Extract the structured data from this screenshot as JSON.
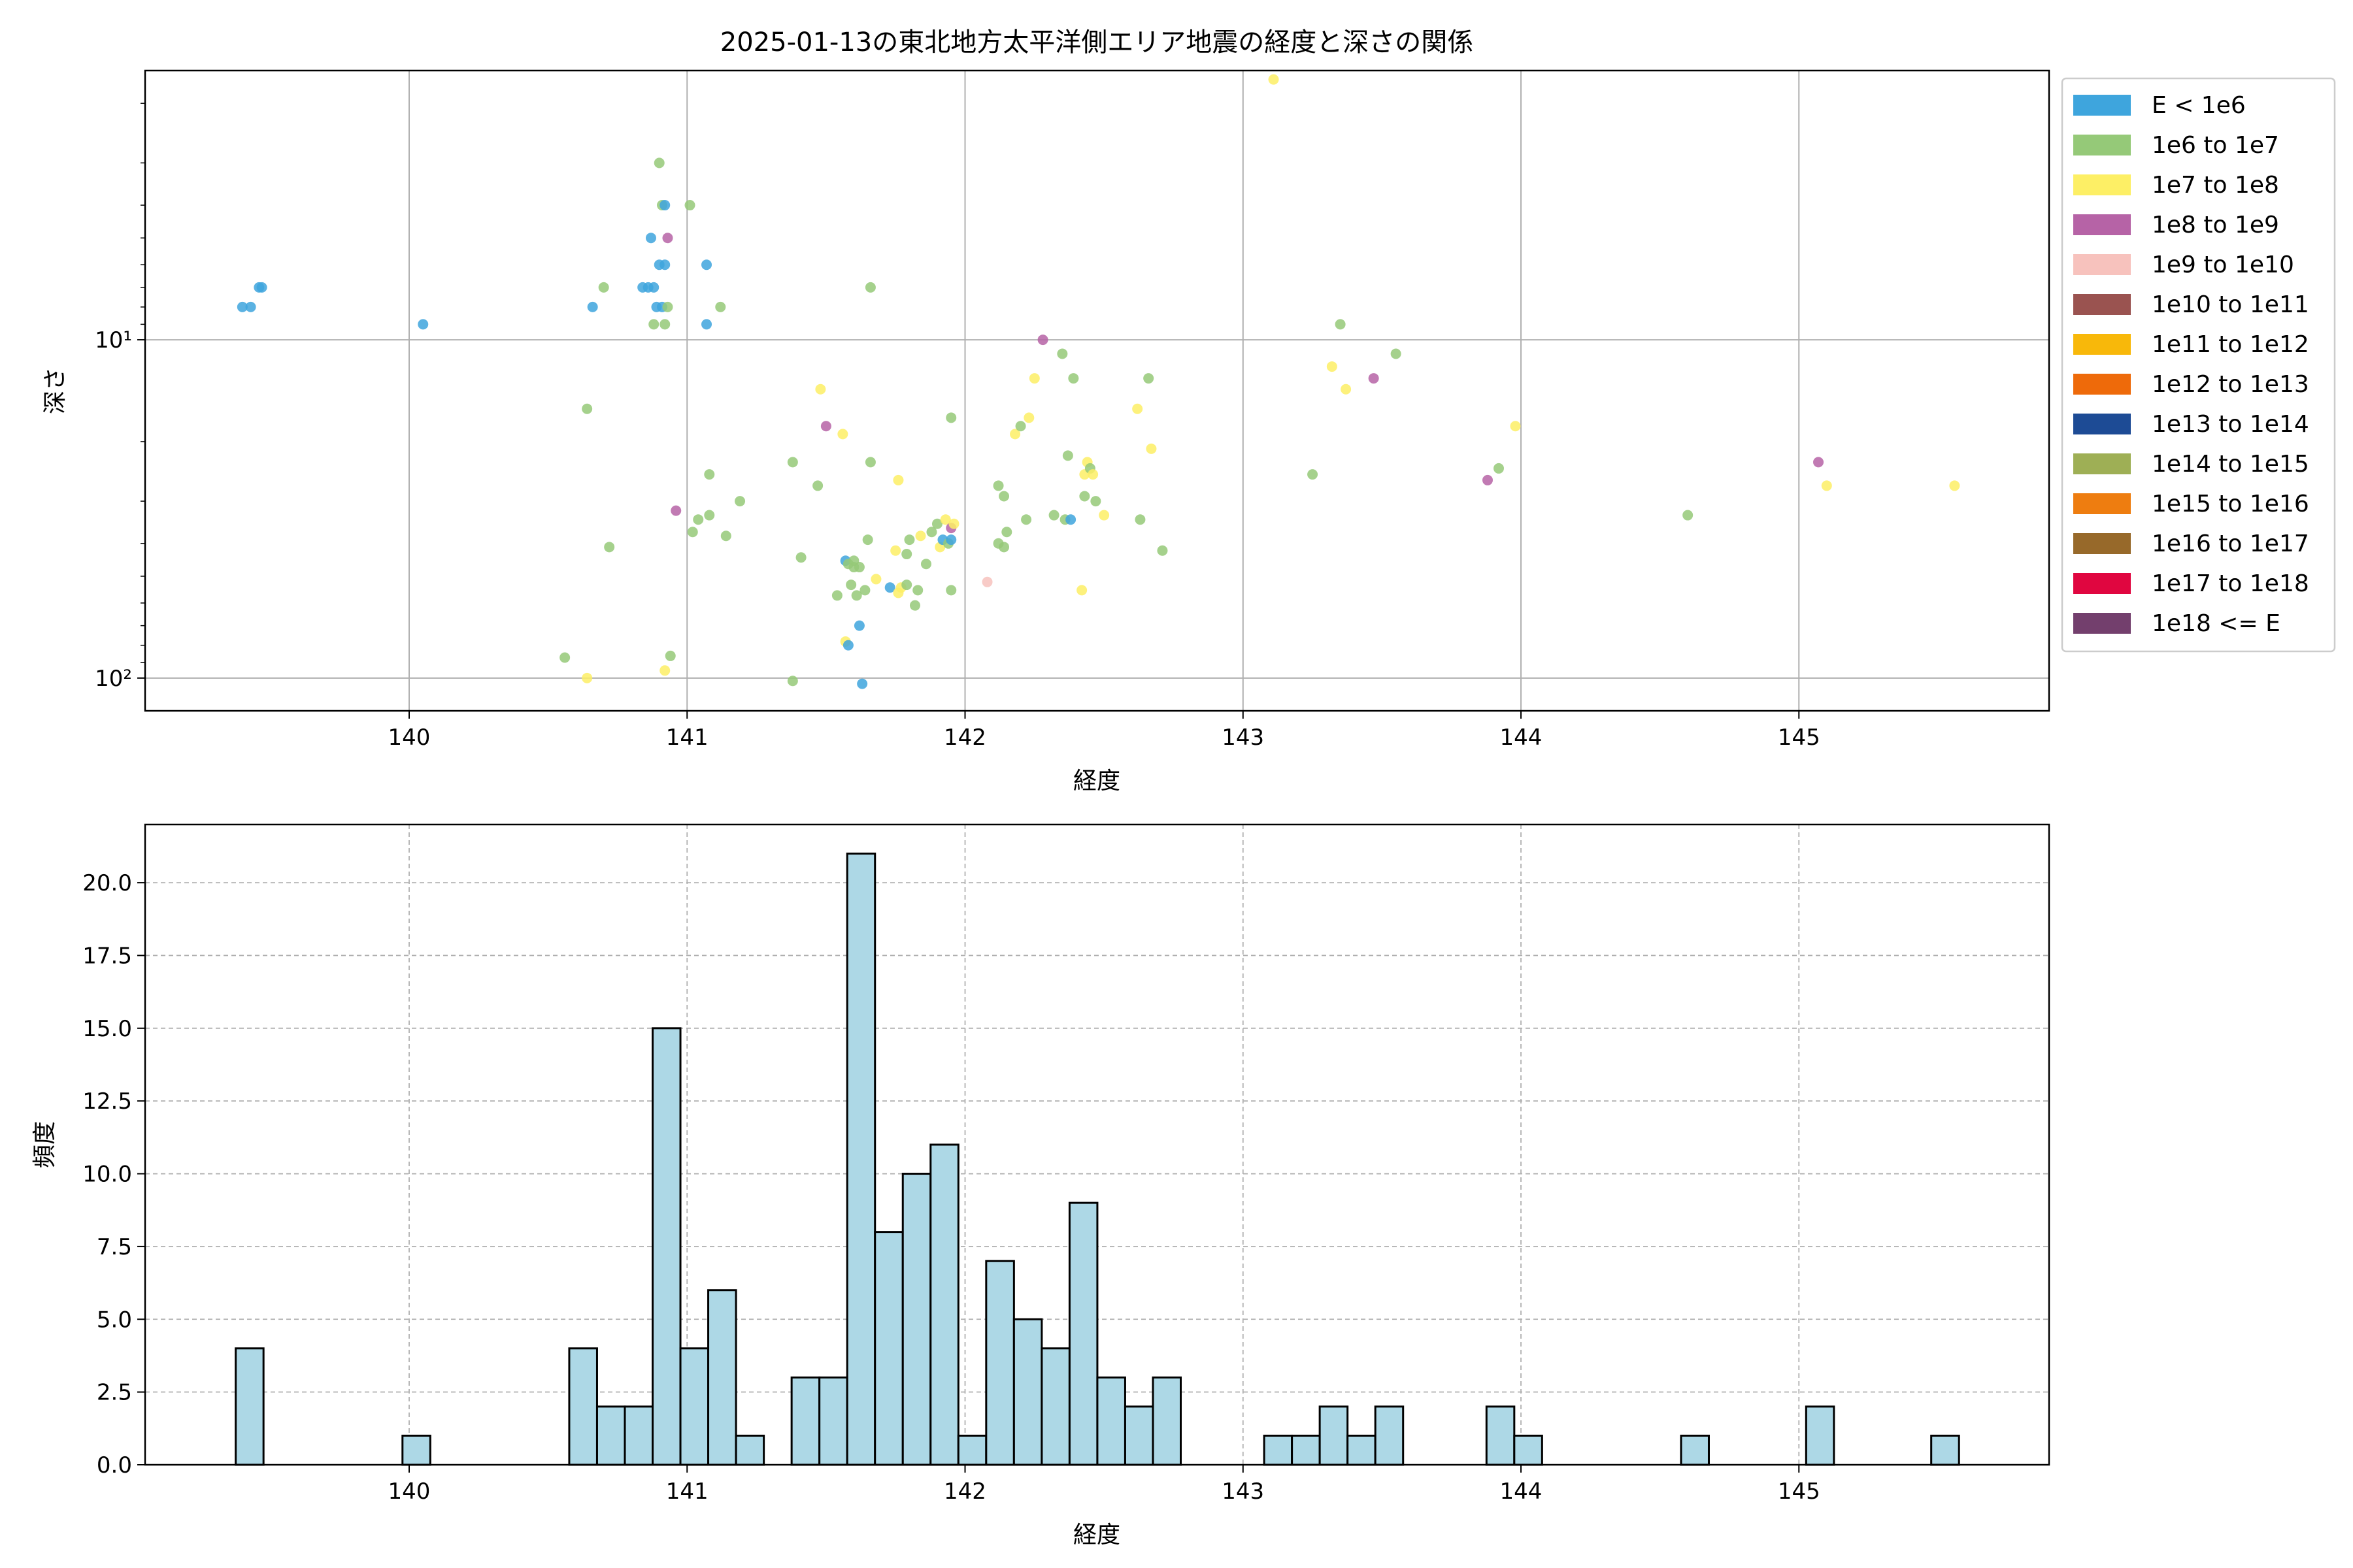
{
  "chart_data": [
    {
      "type": "scatter",
      "title": "2025-01-13の東北地方太平洋側エリア地震の経度と深さの関係",
      "xlabel": "経度",
      "ylabel": "深さ",
      "xlim": [
        139.05,
        145.9
      ],
      "ylim": [
        125,
        1.6
      ],
      "yscale": "log",
      "y_inverted": true,
      "xticks": [
        140,
        141,
        142,
        143,
        144,
        145
      ],
      "xtick_labels": [
        "140",
        "141",
        "142",
        "143",
        "144",
        "145"
      ],
      "yticks": [
        10,
        100
      ],
      "ytick_labels": [
        "10¹",
        "10²"
      ],
      "grid": true,
      "legend": {
        "placement": "outside-right",
        "entries": [
          {
            "label": "E < 1e6",
            "color": "#3ea5dd"
          },
          {
            "label": "1e6 to 1e7",
            "color": "#95c978"
          },
          {
            "label": "1e7 to 1e8",
            "color": "#fdef65"
          },
          {
            "label": "1e8 to 1e9",
            "color": "#b663a6"
          },
          {
            "label": "1e9 to 1e10",
            "color": "#f7c2bd"
          },
          {
            "label": "1e10 to 1e11",
            "color": "#9a5350"
          },
          {
            "label": "1e11 to 1e12",
            "color": "#f8b80a"
          },
          {
            "label": "1e12 to 1e13",
            "color": "#ee6a0a"
          },
          {
            "label": "1e13 to 1e14",
            "color": "#1d4b95"
          },
          {
            "label": "1e14 to 1e15",
            "color": "#9eaf55"
          },
          {
            "label": "1e15 to 1e16",
            "color": "#ee7d10"
          },
          {
            "label": "1e16 to 1e17",
            "color": "#97692a"
          },
          {
            "label": "1e17 to 1e18",
            "color": "#e00640"
          },
          {
            "label": "1e18 <= E",
            "color": "#733f6d"
          }
        ]
      },
      "points": [
        {
          "x": 139.4,
          "y": 8,
          "c": 0
        },
        {
          "x": 139.43,
          "y": 8,
          "c": 0
        },
        {
          "x": 139.46,
          "y": 7,
          "c": 0
        },
        {
          "x": 139.47,
          "y": 7,
          "c": 0
        },
        {
          "x": 140.05,
          "y": 9,
          "c": 0
        },
        {
          "x": 140.56,
          "y": 87,
          "c": 1
        },
        {
          "x": 140.64,
          "y": 100,
          "c": 2
        },
        {
          "x": 140.64,
          "y": 16,
          "c": 1
        },
        {
          "x": 140.66,
          "y": 8,
          "c": 0
        },
        {
          "x": 140.7,
          "y": 7,
          "c": 1
        },
        {
          "x": 140.72,
          "y": 41,
          "c": 1
        },
        {
          "x": 140.84,
          "y": 7,
          "c": 0
        },
        {
          "x": 140.86,
          "y": 7,
          "c": 0
        },
        {
          "x": 140.87,
          "y": 5,
          "c": 0
        },
        {
          "x": 140.88,
          "y": 7,
          "c": 0
        },
        {
          "x": 140.88,
          "y": 9,
          "c": 1
        },
        {
          "x": 140.89,
          "y": 8,
          "c": 0
        },
        {
          "x": 140.9,
          "y": 6,
          "c": 0
        },
        {
          "x": 140.9,
          "y": 3,
          "c": 1
        },
        {
          "x": 140.91,
          "y": 4,
          "c": 1
        },
        {
          "x": 140.91,
          "y": 8,
          "c": 0
        },
        {
          "x": 140.92,
          "y": 4,
          "c": 0
        },
        {
          "x": 140.92,
          "y": 6,
          "c": 0
        },
        {
          "x": 140.92,
          "y": 9,
          "c": 1
        },
        {
          "x": 140.92,
          "y": 95,
          "c": 2
        },
        {
          "x": 140.93,
          "y": 5,
          "c": 3
        },
        {
          "x": 140.93,
          "y": 8,
          "c": 1
        },
        {
          "x": 140.94,
          "y": 86,
          "c": 1
        },
        {
          "x": 140.96,
          "y": 32,
          "c": 3
        },
        {
          "x": 141.01,
          "y": 4,
          "c": 1
        },
        {
          "x": 141.02,
          "y": 37,
          "c": 1
        },
        {
          "x": 141.04,
          "y": 34,
          "c": 1
        },
        {
          "x": 141.07,
          "y": 9,
          "c": 0
        },
        {
          "x": 141.07,
          "y": 6,
          "c": 0
        },
        {
          "x": 141.08,
          "y": 25,
          "c": 1
        },
        {
          "x": 141.08,
          "y": 33,
          "c": 1
        },
        {
          "x": 141.12,
          "y": 8,
          "c": 1
        },
        {
          "x": 141.14,
          "y": 38,
          "c": 1
        },
        {
          "x": 141.19,
          "y": 30,
          "c": 1
        },
        {
          "x": 141.38,
          "y": 23,
          "c": 1
        },
        {
          "x": 141.38,
          "y": 102,
          "c": 1
        },
        {
          "x": 141.41,
          "y": 44,
          "c": 1
        },
        {
          "x": 141.47,
          "y": 27,
          "c": 1
        },
        {
          "x": 141.48,
          "y": 14,
          "c": 2
        },
        {
          "x": 141.5,
          "y": 18,
          "c": 3
        },
        {
          "x": 141.54,
          "y": 57,
          "c": 1
        },
        {
          "x": 141.56,
          "y": 19,
          "c": 2
        },
        {
          "x": 141.57,
          "y": 45,
          "c": 0
        },
        {
          "x": 141.57,
          "y": 78,
          "c": 2
        },
        {
          "x": 141.58,
          "y": 80,
          "c": 0
        },
        {
          "x": 141.58,
          "y": 46,
          "c": 1
        },
        {
          "x": 141.59,
          "y": 53,
          "c": 1
        },
        {
          "x": 141.6,
          "y": 47,
          "c": 1
        },
        {
          "x": 141.6,
          "y": 45,
          "c": 1
        },
        {
          "x": 141.61,
          "y": 57,
          "c": 1
        },
        {
          "x": 141.62,
          "y": 70,
          "c": 0
        },
        {
          "x": 141.62,
          "y": 47,
          "c": 1
        },
        {
          "x": 141.63,
          "y": 104,
          "c": 0
        },
        {
          "x": 141.64,
          "y": 55,
          "c": 1
        },
        {
          "x": 141.65,
          "y": 39,
          "c": 1
        },
        {
          "x": 141.66,
          "y": 23,
          "c": 1
        },
        {
          "x": 141.68,
          "y": 51,
          "c": 2
        },
        {
          "x": 141.66,
          "y": 7,
          "c": 1
        },
        {
          "x": 141.73,
          "y": 54,
          "c": 0
        },
        {
          "x": 141.75,
          "y": 42,
          "c": 2
        },
        {
          "x": 141.76,
          "y": 56,
          "c": 2
        },
        {
          "x": 141.76,
          "y": 26,
          "c": 2
        },
        {
          "x": 141.77,
          "y": 54,
          "c": 2
        },
        {
          "x": 141.79,
          "y": 53,
          "c": 1
        },
        {
          "x": 141.79,
          "y": 43,
          "c": 1
        },
        {
          "x": 141.8,
          "y": 39,
          "c": 1
        },
        {
          "x": 141.82,
          "y": 61,
          "c": 1
        },
        {
          "x": 141.83,
          "y": 55,
          "c": 1
        },
        {
          "x": 141.84,
          "y": 38,
          "c": 2
        },
        {
          "x": 141.86,
          "y": 46,
          "c": 1
        },
        {
          "x": 141.88,
          "y": 37,
          "c": 1
        },
        {
          "x": 141.9,
          "y": 35,
          "c": 1
        },
        {
          "x": 141.91,
          "y": 41,
          "c": 2
        },
        {
          "x": 141.92,
          "y": 39,
          "c": 0
        },
        {
          "x": 141.93,
          "y": 34,
          "c": 2
        },
        {
          "x": 141.94,
          "y": 40,
          "c": 1
        },
        {
          "x": 141.95,
          "y": 39,
          "c": 0
        },
        {
          "x": 141.95,
          "y": 36,
          "c": 3
        },
        {
          "x": 141.96,
          "y": 35,
          "c": 2
        },
        {
          "x": 141.95,
          "y": 55,
          "c": 1
        },
        {
          "x": 141.95,
          "y": 17,
          "c": 1
        },
        {
          "x": 142.08,
          "y": 52,
          "c": 4
        },
        {
          "x": 142.12,
          "y": 27,
          "c": 1
        },
        {
          "x": 142.12,
          "y": 40,
          "c": 1
        },
        {
          "x": 142.14,
          "y": 41,
          "c": 1
        },
        {
          "x": 142.14,
          "y": 29,
          "c": 1
        },
        {
          "x": 142.15,
          "y": 37,
          "c": 1
        },
        {
          "x": 142.18,
          "y": 19,
          "c": 2
        },
        {
          "x": 142.2,
          "y": 18,
          "c": 1
        },
        {
          "x": 142.22,
          "y": 34,
          "c": 1
        },
        {
          "x": 142.23,
          "y": 17,
          "c": 2
        },
        {
          "x": 142.25,
          "y": 13,
          "c": 2
        },
        {
          "x": 142.28,
          "y": 10,
          "c": 3
        },
        {
          "x": 142.32,
          "y": 33,
          "c": 1
        },
        {
          "x": 142.35,
          "y": 11,
          "c": 1
        },
        {
          "x": 142.36,
          "y": 34,
          "c": 1
        },
        {
          "x": 142.37,
          "y": 22,
          "c": 1
        },
        {
          "x": 142.38,
          "y": 34,
          "c": 0
        },
        {
          "x": 142.39,
          "y": 13,
          "c": 1
        },
        {
          "x": 142.42,
          "y": 55,
          "c": 2
        },
        {
          "x": 142.43,
          "y": 29,
          "c": 1
        },
        {
          "x": 142.43,
          "y": 25,
          "c": 2
        },
        {
          "x": 142.44,
          "y": 23,
          "c": 2
        },
        {
          "x": 142.45,
          "y": 24,
          "c": 1
        },
        {
          "x": 142.46,
          "y": 25,
          "c": 2
        },
        {
          "x": 142.47,
          "y": 30,
          "c": 1
        },
        {
          "x": 142.5,
          "y": 33,
          "c": 2
        },
        {
          "x": 142.62,
          "y": 16,
          "c": 2
        },
        {
          "x": 142.63,
          "y": 34,
          "c": 1
        },
        {
          "x": 142.66,
          "y": 13,
          "c": 1
        },
        {
          "x": 142.67,
          "y": 21,
          "c": 2
        },
        {
          "x": 142.71,
          "y": 42,
          "c": 1
        },
        {
          "x": 143.11,
          "y": 1.7,
          "c": 2
        },
        {
          "x": 143.25,
          "y": 25,
          "c": 1
        },
        {
          "x": 143.32,
          "y": 12,
          "c": 2
        },
        {
          "x": 143.35,
          "y": 9,
          "c": 1
        },
        {
          "x": 143.37,
          "y": 14,
          "c": 2
        },
        {
          "x": 143.47,
          "y": 13,
          "c": 3
        },
        {
          "x": 143.55,
          "y": 11,
          "c": 1
        },
        {
          "x": 143.88,
          "y": 26,
          "c": 3
        },
        {
          "x": 143.92,
          "y": 24,
          "c": 1
        },
        {
          "x": 143.98,
          "y": 18,
          "c": 2
        },
        {
          "x": 144.6,
          "y": 33,
          "c": 1
        },
        {
          "x": 145.07,
          "y": 23,
          "c": 3
        },
        {
          "x": 145.1,
          "y": 27,
          "c": 2
        },
        {
          "x": 145.56,
          "y": 27,
          "c": 2
        }
      ]
    },
    {
      "type": "bar",
      "title": "",
      "xlabel": "経度",
      "ylabel": "頻度",
      "xlim": [
        139.05,
        145.9
      ],
      "ylim": [
        0,
        22
      ],
      "xticks": [
        140,
        141,
        142,
        143,
        144,
        145
      ],
      "xtick_labels": [
        "140",
        "141",
        "142",
        "143",
        "144",
        "145"
      ],
      "yticks": [
        0,
        2.5,
        5,
        7.5,
        10,
        12.5,
        15,
        17.5,
        20
      ],
      "ytick_labels": [
        "0.0",
        "2.5",
        "5.0",
        "7.5",
        "10.0",
        "12.5",
        "15.0",
        "17.5",
        "20.0"
      ],
      "grid": true,
      "bin_edges": [
        139.376,
        139.476,
        139.976,
        140.076,
        140.576,
        140.676,
        140.776,
        140.876,
        140.976,
        141.076,
        141.176,
        141.276,
        141.376,
        141.476,
        141.576,
        141.676,
        141.776,
        141.876,
        141.976,
        142.076,
        142.176,
        142.276,
        142.376,
        142.476,
        142.576,
        142.676,
        142.776,
        143.076,
        143.176,
        143.276,
        143.376,
        143.476,
        143.576,
        143.876,
        143.976,
        144.076,
        144.576,
        144.676,
        145.026,
        145.126,
        145.476,
        145.576
      ],
      "bars": [
        {
          "x0": 139.376,
          "x1": 139.476,
          "value": 4
        },
        {
          "x0": 139.976,
          "x1": 140.076,
          "value": 1
        },
        {
          "x0": 140.576,
          "x1": 140.676,
          "value": 4
        },
        {
          "x0": 140.676,
          "x1": 140.776,
          "value": 2
        },
        {
          "x0": 140.776,
          "x1": 140.876,
          "value": 2
        },
        {
          "x0": 140.876,
          "x1": 140.976,
          "value": 15
        },
        {
          "x0": 140.976,
          "x1": 141.076,
          "value": 4
        },
        {
          "x0": 141.076,
          "x1": 141.176,
          "value": 6
        },
        {
          "x0": 141.176,
          "x1": 141.276,
          "value": 1
        },
        {
          "x0": 141.376,
          "x1": 141.476,
          "value": 3
        },
        {
          "x0": 141.476,
          "x1": 141.576,
          "value": 3
        },
        {
          "x0": 141.576,
          "x1": 141.676,
          "value": 21
        },
        {
          "x0": 141.676,
          "x1": 141.776,
          "value": 8
        },
        {
          "x0": 141.776,
          "x1": 141.876,
          "value": 10
        },
        {
          "x0": 141.876,
          "x1": 141.976,
          "value": 11
        },
        {
          "x0": 141.976,
          "x1": 142.076,
          "value": 1
        },
        {
          "x0": 142.076,
          "x1": 142.176,
          "value": 7
        },
        {
          "x0": 142.176,
          "x1": 142.276,
          "value": 5
        },
        {
          "x0": 142.276,
          "x1": 142.376,
          "value": 4
        },
        {
          "x0": 142.376,
          "x1": 142.476,
          "value": 9
        },
        {
          "x0": 142.476,
          "x1": 142.576,
          "value": 3
        },
        {
          "x0": 142.576,
          "x1": 142.676,
          "value": 2
        },
        {
          "x0": 142.676,
          "x1": 142.776,
          "value": 3
        },
        {
          "x0": 143.076,
          "x1": 143.176,
          "value": 1
        },
        {
          "x0": 143.176,
          "x1": 143.276,
          "value": 1
        },
        {
          "x0": 143.276,
          "x1": 143.376,
          "value": 2
        },
        {
          "x0": 143.376,
          "x1": 143.476,
          "value": 1
        },
        {
          "x0": 143.476,
          "x1": 143.576,
          "value": 2
        },
        {
          "x0": 143.876,
          "x1": 143.976,
          "value": 2
        },
        {
          "x0": 143.976,
          "x1": 144.076,
          "value": 1
        },
        {
          "x0": 144.576,
          "x1": 144.676,
          "value": 1
        },
        {
          "x0": 145.026,
          "x1": 145.126,
          "value": 2
        },
        {
          "x0": 145.476,
          "x1": 145.576,
          "value": 1
        }
      ],
      "bar_color": "#add8e6",
      "edge_color": "#000000"
    }
  ]
}
